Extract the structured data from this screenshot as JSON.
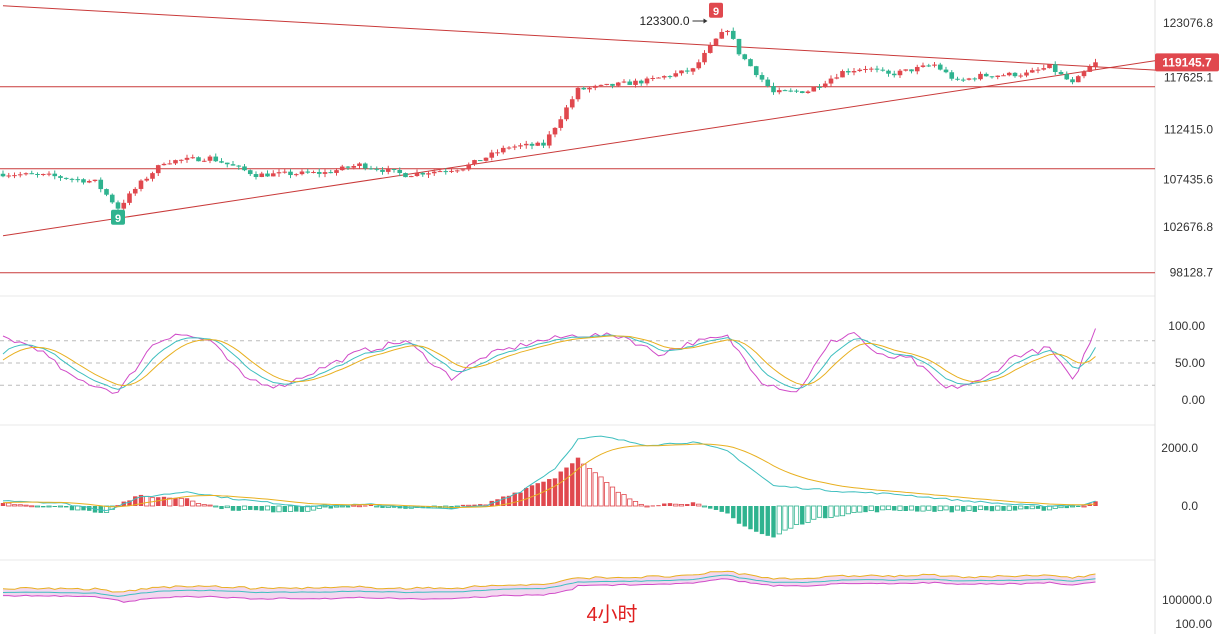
{
  "chart_data": {
    "type": "candlestick",
    "timeframe_label": "4小时",
    "colors": {
      "up": "#e0484e",
      "down": "#2fb38f",
      "line": "#c93a3a",
      "k": "#3fbfbf",
      "d": "#e8b020",
      "j": "#d04bc8",
      "macd_fast": "#3fbfbf",
      "macd_slow": "#e8b020"
    },
    "price_axis": {
      "ticks": [
        123076.8,
        117625.1,
        112415.0,
        107435.6,
        102676.8,
        98128.7
      ],
      "current": "119145.7"
    },
    "peak_annotation": {
      "text": "123300.0",
      "price": 123300
    },
    "td_badges": [
      {
        "text": "9",
        "index": 0
      },
      {
        "text": "9",
        "index": 1
      }
    ],
    "horizontal_levels": [
      116700,
      108500,
      98100
    ],
    "trendlines": [
      {
        "name": "upper",
        "from": [
          0,
          124800
        ],
        "to": [
          190,
          118700
        ]
      },
      {
        "name": "lower",
        "from": [
          0,
          101800
        ],
        "to": [
          190,
          118400
        ]
      }
    ],
    "kdj": {
      "ticks": [
        "100.00",
        "50.00",
        "0.00"
      ],
      "levels": [
        80,
        50,
        20
      ]
    },
    "macd": {
      "ticks": [
        "2000.0",
        "0.0"
      ]
    },
    "volume": {
      "ticks": [
        "100000.0",
        "100.00"
      ]
    },
    "close_anchors": [
      [
        0,
        108000
      ],
      [
        8,
        107800
      ],
      [
        16,
        107200
      ],
      [
        20,
        104600
      ],
      [
        24,
        107100
      ],
      [
        28,
        109200
      ],
      [
        36,
        109600
      ],
      [
        44,
        107900
      ],
      [
        56,
        108100
      ],
      [
        62,
        108900
      ],
      [
        70,
        107900
      ],
      [
        80,
        108600
      ],
      [
        88,
        110700
      ],
      [
        94,
        110900
      ],
      [
        100,
        116400
      ],
      [
        112,
        117300
      ],
      [
        120,
        118400
      ],
      [
        124,
        121400
      ],
      [
        126,
        122500
      ],
      [
        128,
        120100
      ],
      [
        134,
        116100
      ],
      [
        140,
        116300
      ],
      [
        146,
        118200
      ],
      [
        150,
        118600
      ],
      [
        154,
        117900
      ],
      [
        162,
        118900
      ],
      [
        166,
        117200
      ],
      [
        170,
        117800
      ],
      [
        178,
        118000
      ],
      [
        182,
        118700
      ],
      [
        186,
        117000
      ],
      [
        190,
        119145.7
      ]
    ],
    "kdj_anchors": [
      [
        0,
        85
      ],
      [
        6,
        70
      ],
      [
        12,
        30
      ],
      [
        20,
        10
      ],
      [
        26,
        75
      ],
      [
        30,
        90
      ],
      [
        36,
        80
      ],
      [
        42,
        30
      ],
      [
        48,
        18
      ],
      [
        56,
        45
      ],
      [
        62,
        65
      ],
      [
        70,
        80
      ],
      [
        78,
        30
      ],
      [
        84,
        60
      ],
      [
        92,
        78
      ],
      [
        100,
        88
      ],
      [
        108,
        86
      ],
      [
        114,
        62
      ],
      [
        120,
        78
      ],
      [
        126,
        85
      ],
      [
        132,
        25
      ],
      [
        138,
        10
      ],
      [
        144,
        78
      ],
      [
        148,
        92
      ],
      [
        152,
        60
      ],
      [
        158,
        55
      ],
      [
        164,
        15
      ],
      [
        170,
        25
      ],
      [
        176,
        60
      ],
      [
        182,
        70
      ],
      [
        186,
        25
      ],
      [
        190,
        95
      ]
    ],
    "macd_anchors": [
      [
        0,
        200
      ],
      [
        10,
        100
      ],
      [
        18,
        -150
      ],
      [
        24,
        300
      ],
      [
        32,
        500
      ],
      [
        40,
        250
      ],
      [
        52,
        0
      ],
      [
        64,
        50
      ],
      [
        76,
        -100
      ],
      [
        84,
        0
      ],
      [
        90,
        500
      ],
      [
        96,
        1300
      ],
      [
        100,
        2300
      ],
      [
        104,
        2400
      ],
      [
        112,
        2100
      ],
      [
        120,
        2200
      ],
      [
        126,
        1900
      ],
      [
        134,
        700
      ],
      [
        146,
        500
      ],
      [
        156,
        400
      ],
      [
        166,
        200
      ],
      [
        176,
        50
      ],
      [
        182,
        0
      ],
      [
        188,
        50
      ],
      [
        190,
        150
      ]
    ]
  }
}
